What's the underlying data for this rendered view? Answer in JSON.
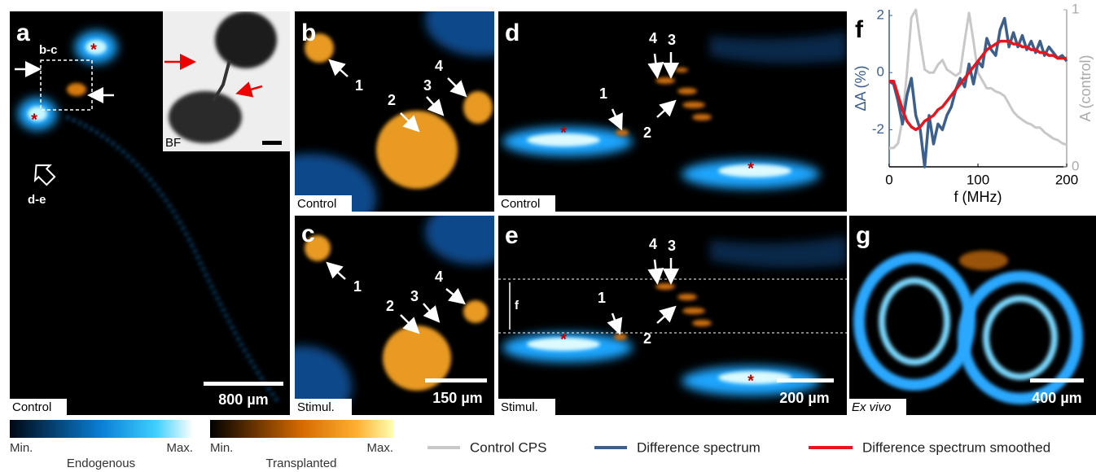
{
  "panels": {
    "a": {
      "label": "a",
      "inset_label": "b-c",
      "arrow_label": "d-e",
      "markers": [
        "*",
        "*"
      ],
      "bf_label": "BF",
      "condition": "Control",
      "scale_bar": "800 µm"
    },
    "b": {
      "label": "b",
      "arrows": [
        "1",
        "2",
        "3",
        "4"
      ],
      "condition": "Control"
    },
    "c": {
      "label": "c",
      "arrows": [
        "1",
        "2",
        "3",
        "4"
      ],
      "condition": "Stimul.",
      "scale_bar": "150 µm"
    },
    "d": {
      "label": "d",
      "arrows": [
        "1",
        "2",
        "3",
        "4"
      ],
      "markers": [
        "*",
        "*"
      ],
      "condition": "Control"
    },
    "e": {
      "label": "e",
      "arrows": [
        "1",
        "2",
        "3",
        "4"
      ],
      "markers": [
        "*",
        "*"
      ],
      "range_label": "f",
      "condition": "Stimul.",
      "scale_bar": "200 µm"
    },
    "g": {
      "label": "g",
      "condition": "Ex vivo",
      "scale_bar": "400 µm"
    }
  },
  "colorbars": [
    {
      "min": "Min.",
      "max": "Max.",
      "label": "Endogenous"
    },
    {
      "min": "Min.",
      "max": "Max.",
      "label": "Transplanted"
    }
  ],
  "chart_data": {
    "type": "line",
    "title": "f",
    "xlabel": "f (MHz)",
    "ylabel": "ΔA (%)",
    "y2label": "A (control)",
    "x": [
      0,
      5,
      10,
      15,
      20,
      25,
      30,
      35,
      40,
      45,
      50,
      55,
      60,
      65,
      70,
      75,
      80,
      85,
      90,
      95,
      100,
      105,
      110,
      115,
      120,
      125,
      130,
      135,
      140,
      145,
      150,
      155,
      160,
      165,
      170,
      175,
      180,
      185,
      190,
      195,
      200
    ],
    "xlim": [
      0,
      200
    ],
    "xticks": [
      0,
      100,
      200
    ],
    "ylim": [
      -3.3,
      2.2
    ],
    "yticks": [
      -2,
      0,
      2
    ],
    "y2lim": [
      0,
      1
    ],
    "y2ticks": [
      0,
      1
    ],
    "series": [
      {
        "name": "Control CPS",
        "color": "#c8c8c8",
        "axis": "y2",
        "values": [
          0.12,
          0.12,
          0.15,
          0.3,
          0.6,
          0.95,
          1.0,
          0.8,
          0.62,
          0.6,
          0.6,
          0.65,
          0.68,
          0.62,
          0.6,
          0.58,
          0.6,
          0.8,
          0.98,
          0.8,
          0.6,
          0.55,
          0.5,
          0.5,
          0.48,
          0.47,
          0.45,
          0.4,
          0.35,
          0.32,
          0.3,
          0.28,
          0.27,
          0.25,
          0.25,
          0.22,
          0.2,
          0.18,
          0.17,
          0.15,
          0.14
        ]
      },
      {
        "name": "Difference spectrum",
        "color": "#3d5f8c",
        "values": [
          -0.3,
          -0.4,
          -1.0,
          -1.8,
          -0.8,
          -0.2,
          -1.5,
          -2.0,
          -3.3,
          -1.5,
          -2.5,
          -1.8,
          -2.0,
          -1.5,
          -1.2,
          -0.6,
          -0.2,
          -0.5,
          0.3,
          -0.4,
          0.4,
          0.2,
          1.2,
          0.8,
          0.6,
          1.5,
          1.9,
          0.9,
          1.4,
          0.9,
          1.3,
          0.8,
          1.1,
          0.7,
          1.1,
          0.6,
          0.9,
          0.7,
          0.5,
          0.6,
          0.4
        ]
      },
      {
        "name": "Difference spectrum smoothed",
        "color": "#e8141e",
        "values": [
          -0.3,
          -0.3,
          -0.8,
          -1.3,
          -1.7,
          -1.9,
          -2.0,
          -1.9,
          -1.7,
          -1.6,
          -1.5,
          -1.3,
          -1.2,
          -1.0,
          -0.8,
          -0.6,
          -0.4,
          -0.2,
          0.0,
          0.2,
          0.4,
          0.6,
          0.8,
          0.9,
          1.0,
          1.1,
          1.1,
          1.1,
          1.0,
          1.0,
          0.9,
          0.9,
          0.8,
          0.8,
          0.7,
          0.7,
          0.6,
          0.6,
          0.5,
          0.5,
          0.5
        ]
      }
    ]
  }
}
